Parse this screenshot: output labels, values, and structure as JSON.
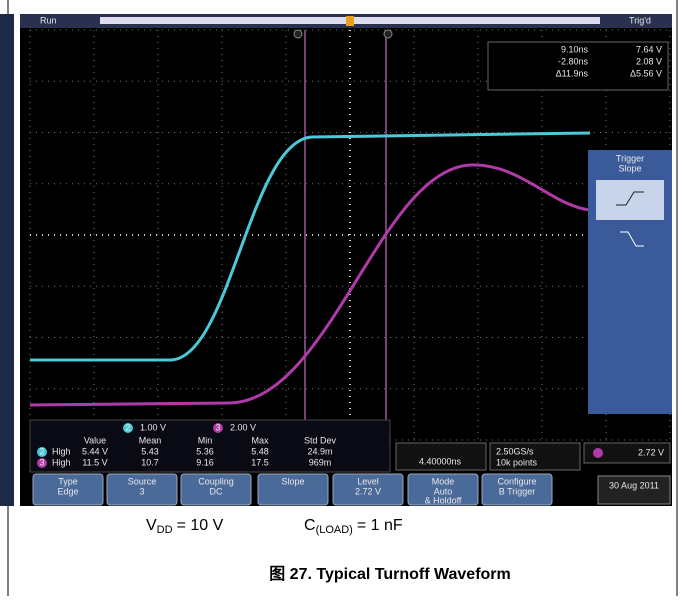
{
  "scope": {
    "status": "Run",
    "trigger_state": "Trig'd",
    "cursor_readout": [
      [
        "9.10ns",
        "7.64 V"
      ],
      [
        "-2.80ns",
        "2.08 V"
      ],
      [
        "Δ11.9ns",
        "Δ5.56 V"
      ]
    ],
    "trigger_panel": {
      "title_lines": [
        "Trigger",
        "Slope"
      ]
    },
    "channels": [
      {
        "number": "2",
        "scale": "1.00 V"
      },
      {
        "number": "3",
        "scale": "2.00 V"
      }
    ],
    "measurements": {
      "header": [
        "Value",
        "Mean",
        "Min",
        "Max",
        "Std Dev"
      ],
      "rows": [
        {
          "channel": "2",
          "name": "High",
          "cells": [
            "5.44 V",
            "5.43",
            "5.36",
            "5.48",
            "24.9m"
          ]
        },
        {
          "channel": "3",
          "name": "High",
          "cells": [
            "11.5 V",
            "10.7",
            "9.16",
            "17.5",
            "969m"
          ]
        }
      ]
    },
    "horizontal_position": "4.40000ns",
    "acquisition": [
      "2.50GS/s",
      "10k points"
    ],
    "trigger_readout": "2.72 V",
    "menu": [
      {
        "label": "Type",
        "value_lines": [
          "Edge"
        ]
      },
      {
        "label": "Source",
        "value_lines": [
          "3"
        ]
      },
      {
        "label": "Coupling",
        "value_lines": [
          "DC"
        ]
      },
      {
        "label": "Slope",
        "value_lines": []
      },
      {
        "label": "Level",
        "value_lines": [
          "2.72 V"
        ]
      },
      {
        "label": "Mode",
        "value_lines": [
          "Auto",
          "& Holdoff"
        ]
      },
      {
        "label": "Configure",
        "value_lines": [
          "B Trigger"
        ]
      }
    ],
    "date": "30 Aug 2011"
  },
  "conditions": [
    {
      "symbol": "V",
      "subscript": "DD",
      "text": "= 10 V"
    },
    {
      "symbol": "C",
      "subscript": "(LOAD)",
      "text": "= 1 nF"
    }
  ],
  "caption": {
    "label": "图 27.",
    "title": "Typical Turnoff Waveform"
  }
}
